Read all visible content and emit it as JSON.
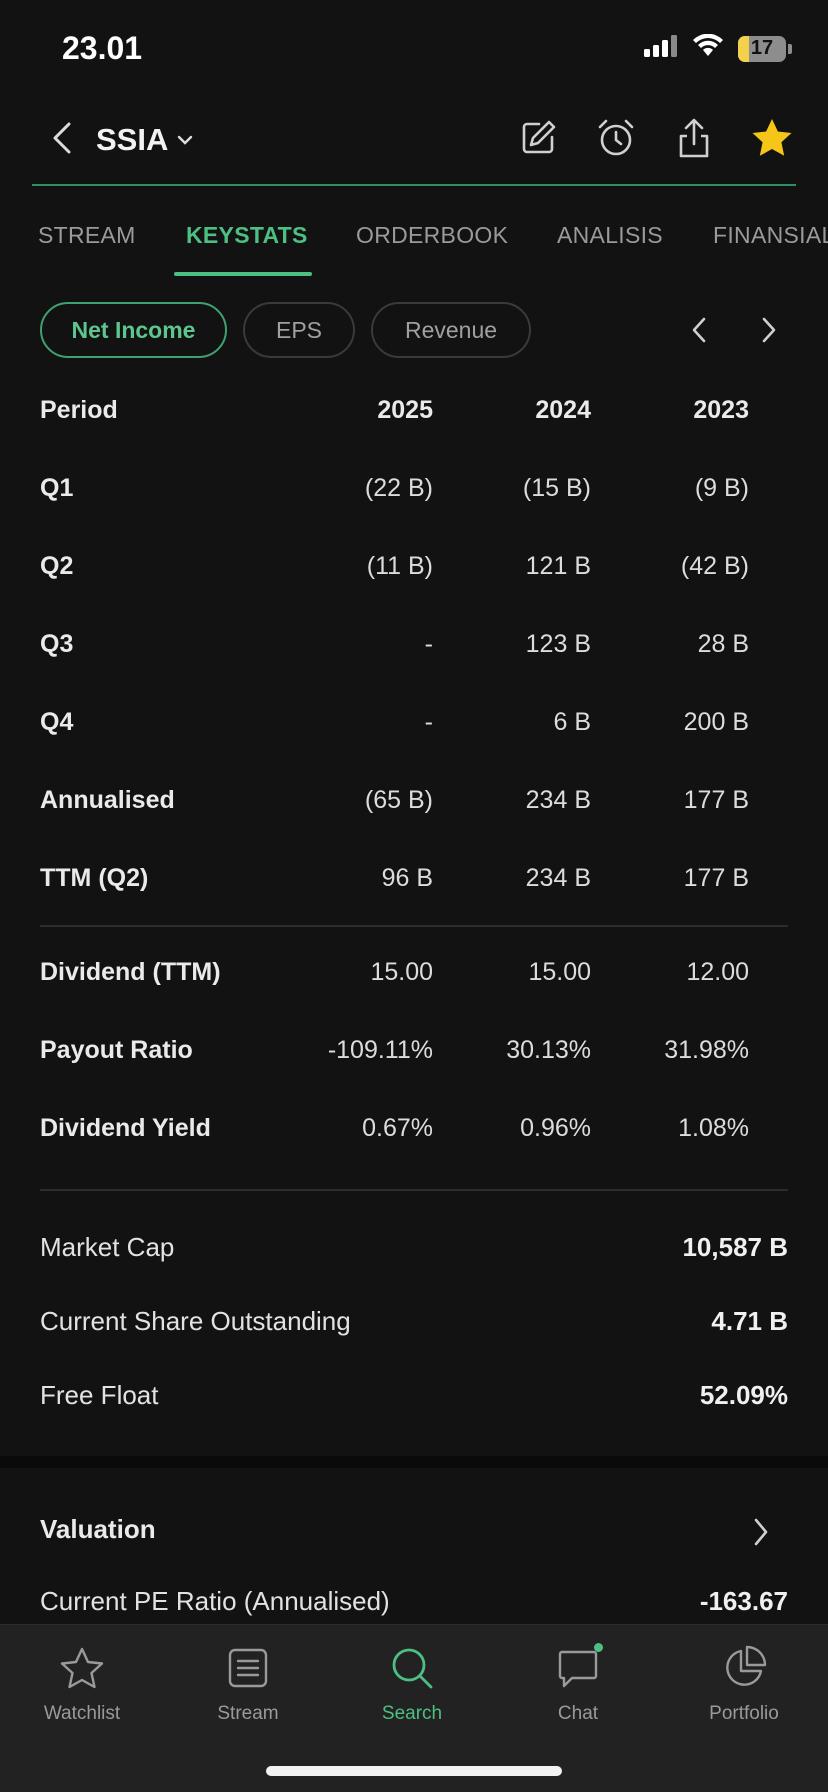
{
  "status": {
    "time": "23.01",
    "battery": "17"
  },
  "header": {
    "ticker": "SSIA"
  },
  "tabs": [
    "STREAM",
    "KEYSTATS",
    "ORDERBOOK",
    "ANALISIS",
    "FINANSIAL"
  ],
  "pills": [
    "Net Income",
    "EPS",
    "Revenue"
  ],
  "table": {
    "head": {
      "label": "Period",
      "c1": "2025",
      "c2": "2024",
      "c3": "2023"
    },
    "rows": [
      {
        "label": "Q1",
        "c1": "(22 B)",
        "c2": "(15 B)",
        "c3": "(9 B)"
      },
      {
        "label": "Q2",
        "c1": "(11 B)",
        "c2": "121 B",
        "c3": "(42 B)"
      },
      {
        "label": "Q3",
        "c1": "-",
        "c2": "123 B",
        "c3": "28 B"
      },
      {
        "label": "Q4",
        "c1": "-",
        "c2": "6 B",
        "c3": "200 B"
      },
      {
        "label": "Annualised",
        "c1": "(65 B)",
        "c2": "234 B",
        "c3": "177 B"
      },
      {
        "label": "TTM (Q2)",
        "c1": "96 B",
        "c2": "234 B",
        "c3": "177 B"
      }
    ],
    "dividend_rows": [
      {
        "label": "Dividend (TTM)",
        "c1": "15.00",
        "c2": "15.00",
        "c3": "12.00"
      },
      {
        "label": "Payout Ratio",
        "c1": "-109.11%",
        "c2": "30.13%",
        "c3": "31.98%"
      },
      {
        "label": "Dividend Yield",
        "c1": "0.67%",
        "c2": "0.96%",
        "c3": "1.08%"
      }
    ]
  },
  "stats": [
    {
      "label": "Market Cap",
      "value": "10,587 B"
    },
    {
      "label": "Current Share Outstanding",
      "value": "4.71 B"
    },
    {
      "label": "Free Float",
      "value": "52.09%"
    }
  ],
  "valuation": {
    "title": "Valuation",
    "first_row": {
      "label": "Current PE Ratio (Annualised)",
      "value": "-163.67"
    }
  },
  "bottom_nav": [
    "Watchlist",
    "Stream",
    "Search",
    "Chat",
    "Portfolio"
  ],
  "colors": {
    "accent": "#4dbf83",
    "background": "#121212",
    "star": "#f5c518"
  }
}
